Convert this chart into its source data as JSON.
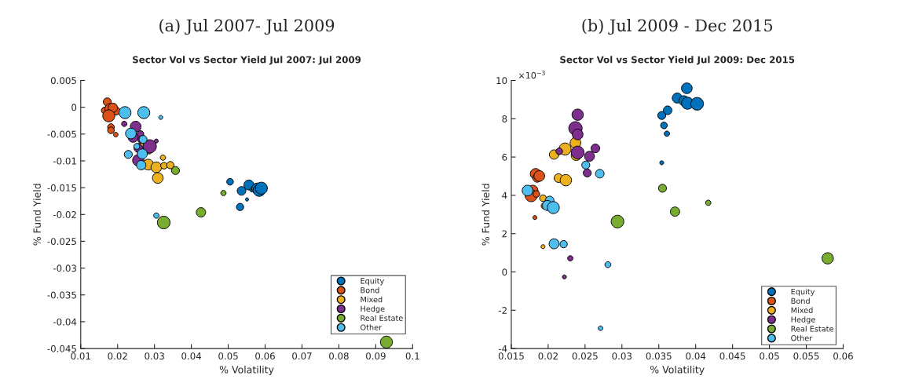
{
  "chart_data": [
    {
      "type": "bubble",
      "title": "(a) Jul 2007- Jul 2009",
      "subtitle": "Sector Vol vs Sector Yield Jul 2007: Jul 2009",
      "xlabel": "% Volatility",
      "ylabel": "% Fund Yield",
      "xlim": [
        0.01,
        0.1
      ],
      "xticks": [
        0.01,
        0.02,
        0.03,
        0.04,
        0.05,
        0.06,
        0.07,
        0.08,
        0.09,
        0.1
      ],
      "ylim": [
        -0.045,
        0.005
      ],
      "yticks": [
        -0.045,
        -0.04,
        -0.035,
        -0.03,
        -0.025,
        -0.02,
        -0.015,
        -0.01,
        -0.005,
        0,
        0.005
      ],
      "grid": false,
      "legend": "bottom right",
      "series": [
        {
          "name": "Equity",
          "color": "#0072bd",
          "x": [
            0.0505,
            0.0536,
            0.0556,
            0.0551,
            0.0532,
            0.0564,
            0.0579,
            0.0584,
            0.059
          ],
          "values": [
            -0.0139,
            -0.0156,
            -0.0145,
            -0.0172,
            -0.0186,
            -0.0154,
            -0.0152,
            -0.0155,
            -0.0151
          ],
          "sizes": [
            0.25,
            0.42,
            0.56,
            0.06,
            0.3,
            0.09,
            0.72,
            0.81,
            0.81
          ]
        },
        {
          "name": "Bond",
          "color": "#d95319",
          "x": [
            0.0172,
            0.0165,
            0.018,
            0.0196,
            0.0187,
            0.0176,
            0.0182,
            0.0182,
            0.0195
          ],
          "values": [
            0.001,
            -0.0006,
            -0.0003,
            -0.0007,
            -0.0001,
            -0.0016,
            -0.0037,
            -0.0043,
            -0.0051
          ],
          "sizes": [
            0.36,
            0.25,
            0.64,
            0.36,
            0.49,
            0.81,
            0.25,
            0.25,
            0.12
          ]
        },
        {
          "name": "Mixed",
          "color": "#edb120",
          "x": [
            0.0283,
            0.0305,
            0.0309,
            0.0323,
            0.0326,
            0.0343,
            0.0285,
            0.0266
          ],
          "values": [
            -0.0107,
            -0.0112,
            -0.0132,
            -0.0094,
            -0.0109,
            -0.0108,
            -0.0081,
            -0.007
          ],
          "sizes": [
            0.64,
            0.64,
            0.64,
            0.16,
            0.25,
            0.3,
            0.25,
            0.25
          ]
        },
        {
          "name": "Hedge",
          "color": "#7e2f8e",
          "x": [
            0.0218,
            0.0249,
            0.0262,
            0.0242,
            0.0256,
            0.0264,
            0.0287,
            0.0305,
            0.0256
          ],
          "values": [
            -0.0031,
            -0.0036,
            -0.005,
            -0.0056,
            -0.0076,
            -0.0061,
            -0.0073,
            -0.0063,
            -0.0099
          ],
          "sizes": [
            0.16,
            0.64,
            0.25,
            0.56,
            0.42,
            0.25,
            1,
            0.09,
            0.72
          ]
        },
        {
          "name": "Real Estate",
          "color": "#77ac30",
          "x": [
            0.0357,
            0.0487,
            0.0426,
            0.0325,
            0.0929
          ],
          "values": [
            -0.0118,
            -0.016,
            -0.0196,
            -0.0215,
            -0.0438
          ],
          "sizes": [
            0.36,
            0.16,
            0.49,
            0.9,
            0.81
          ]
        },
        {
          "name": "Other",
          "color": "#4dbeee",
          "x": [
            0.022,
            0.0271,
            0.0317,
            0.0236,
            0.0269,
            0.0252,
            0.0229,
            0.0267,
            0.0264,
            0.0305
          ],
          "values": [
            -0.001,
            -0.001,
            -0.0019,
            -0.0049,
            -0.006,
            -0.0073,
            -0.0088,
            -0.0087,
            -0.0108,
            -0.0202
          ],
          "sizes": [
            0.81,
            0.81,
            0.09,
            0.64,
            0.36,
            0.2,
            0.36,
            0.56,
            0.49,
            0.16
          ]
        }
      ]
    },
    {
      "type": "bubble",
      "title": "(b) Jul 2009 - Dec 2015",
      "subtitle": "Sector Vol vs Sector Yield Jul 2009: Dec 2015",
      "xlabel": "% Volatility",
      "ylabel": "% Fund Yield",
      "annotations": [
        "×10$^{−3}$"
      ],
      "xlim": [
        0.015,
        0.06
      ],
      "xticks": [
        0.015,
        0.02,
        0.025,
        0.03,
        0.035,
        0.04,
        0.045,
        0.05,
        0.055,
        0.06
      ],
      "ylim": [
        -4,
        10
      ],
      "yticks": [
        -4,
        -2,
        0,
        2,
        4,
        6,
        8,
        10
      ],
      "grid": false,
      "legend": "bottom right",
      "series": [
        {
          "name": "Equity",
          "color": "#0072bd",
          "x": [
            0.0388,
            0.0375,
            0.0384,
            0.0389,
            0.0402,
            0.0362,
            0.0354,
            0.0357,
            0.0361,
            0.0354
          ],
          "values": [
            9.59,
            9.08,
            8.94,
            8.81,
            8.78,
            8.44,
            8.17,
            7.65,
            7.22,
            5.7
          ],
          "sizes": [
            0.64,
            0.56,
            0.56,
            0.81,
            0.9,
            0.42,
            0.36,
            0.25,
            0.16,
            0.09
          ]
        },
        {
          "name": "Bond",
          "color": "#d95319",
          "x": [
            0.0183,
            0.0185,
            0.0188,
            0.0179,
            0.0177,
            0.0184,
            0.0182
          ],
          "values": [
            5.12,
            4.91,
            5.01,
            4.25,
            3.98,
            4.07,
            2.84
          ],
          "sizes": [
            0.64,
            0.42,
            0.64,
            0.64,
            0.81,
            0.25,
            0.09
          ]
        },
        {
          "name": "Mixed",
          "color": "#edb120",
          "x": [
            0.0208,
            0.0223,
            0.0237,
            0.0238,
            0.0214,
            0.0224,
            0.0193,
            0.0195,
            0.0193
          ],
          "values": [
            6.13,
            6.42,
            6.74,
            6.08,
            4.9,
            4.79,
            3.85,
            3.45,
            1.32
          ],
          "sizes": [
            0.49,
            0.81,
            0.64,
            0.56,
            0.42,
            0.72,
            0.25,
            0.25,
            0.09
          ]
        },
        {
          "name": "Hedge",
          "color": "#7e2f8e",
          "x": [
            0.024,
            0.0237,
            0.024,
            0.0215,
            0.024,
            0.0256,
            0.0264,
            0.0253,
            0.023,
            0.0222
          ],
          "values": [
            8.21,
            7.5,
            7.18,
            6.3,
            6.24,
            6.04,
            6.45,
            5.17,
            0.71,
            -0.26
          ],
          "sizes": [
            0.72,
            1,
            0.64,
            0.25,
            0.9,
            0.56,
            0.42,
            0.36,
            0.16,
            0.09
          ]
        },
        {
          "name": "Real Estate",
          "color": "#77ac30",
          "x": [
            0.0355,
            0.0372,
            0.0417,
            0.0294,
            0.0579
          ],
          "values": [
            4.37,
            3.15,
            3.61,
            2.63,
            0.71
          ],
          "sizes": [
            0.36,
            0.49,
            0.16,
            0.9,
            0.72
          ]
        },
        {
          "name": "Other",
          "color": "#4dbeee",
          "x": [
            0.0172,
            0.0202,
            0.0199,
            0.0207,
            0.0251,
            0.027,
            0.0208,
            0.0221,
            0.0281,
            0.0271
          ],
          "values": [
            4.25,
            3.73,
            3.47,
            3.36,
            5.58,
            5.13,
            1.47,
            1.45,
            0.38,
            -2.94
          ],
          "sizes": [
            0.64,
            0.42,
            0.56,
            0.81,
            0.36,
            0.42,
            0.56,
            0.3,
            0.2,
            0.12
          ]
        }
      ]
    }
  ]
}
